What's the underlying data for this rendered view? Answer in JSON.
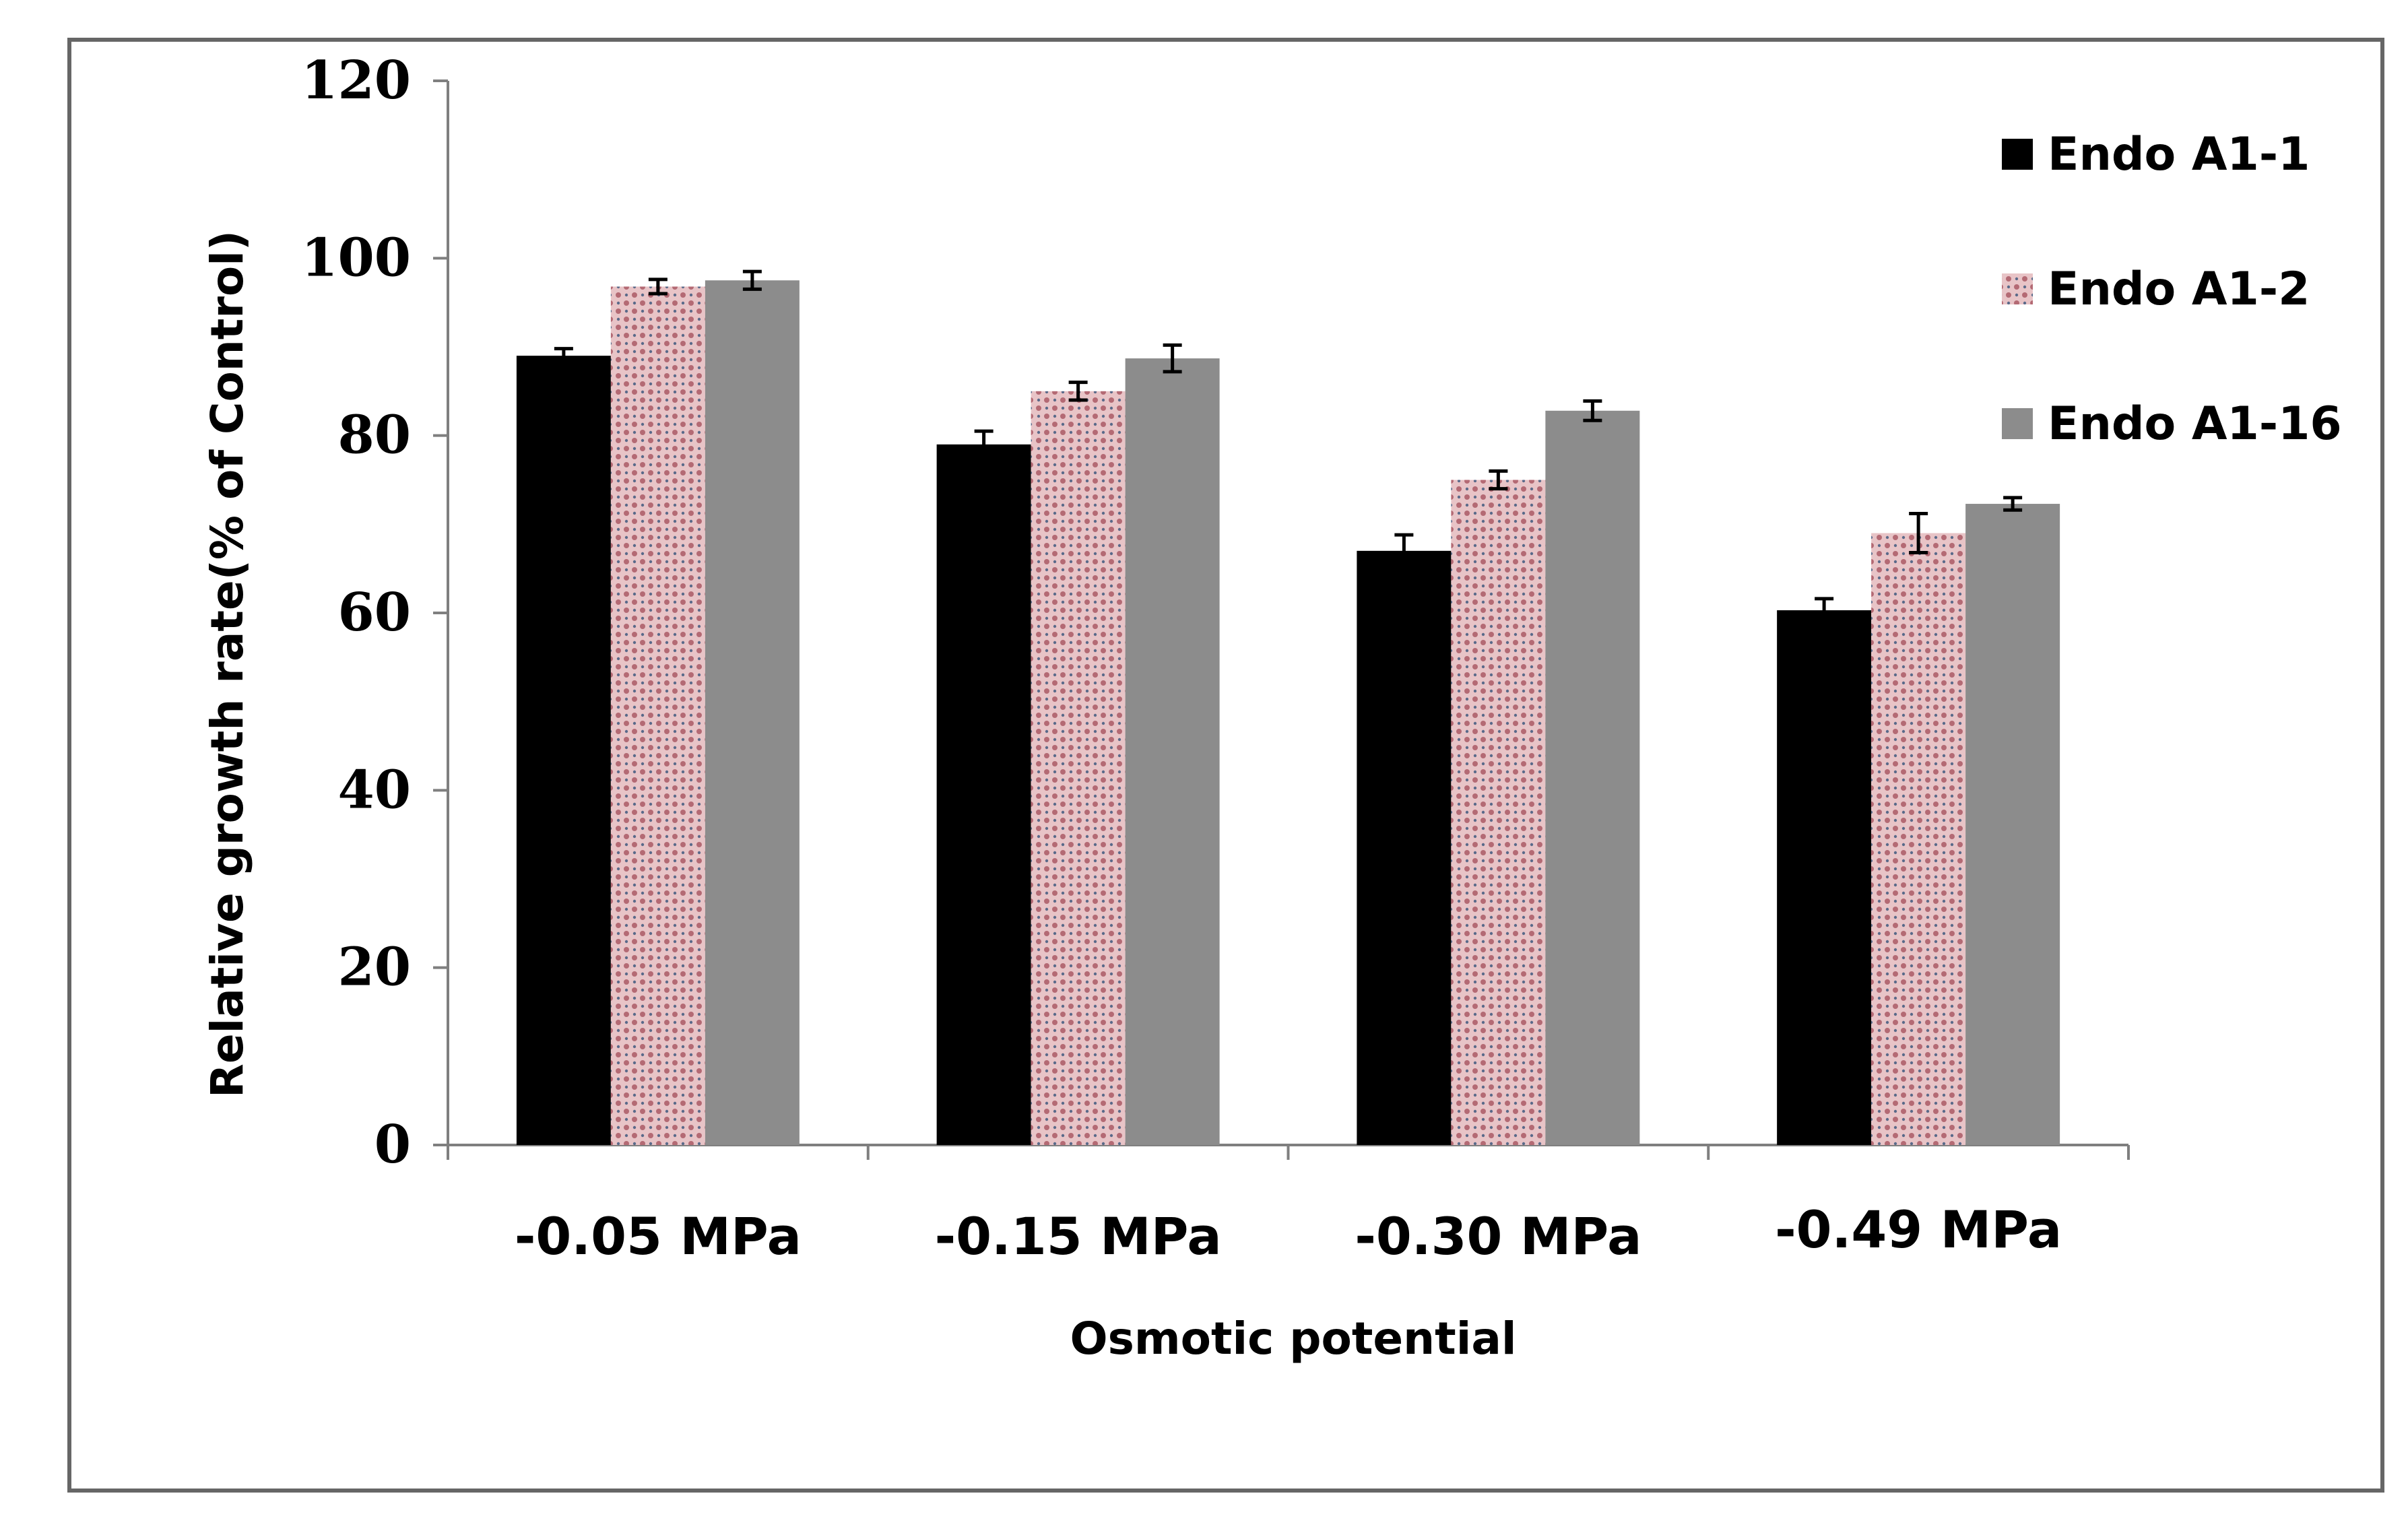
{
  "chart_data": {
    "type": "bar",
    "title": "",
    "xlabel": "Osmotic potential",
    "ylabel": "Relative  growth rate(% of Control)",
    "ylim": [
      0,
      120
    ],
    "yticks": [
      "0",
      "20",
      "40",
      "60",
      "80",
      "100",
      "120"
    ],
    "categories": [
      "-0.05 MPa",
      "-0.15 MPa",
      "-0.30 MPa",
      "-0.49 MPa"
    ],
    "series": [
      {
        "name": "Endo A1-1",
        "values": [
          89,
          79,
          67,
          60.3
        ],
        "errors": [
          0.8,
          1.5,
          1.8,
          1.3
        ],
        "color": "#000000",
        "pattern": "solid"
      },
      {
        "name": "Endo A1-2",
        "values": [
          96.8,
          85,
          75,
          69
        ],
        "errors": [
          0.8,
          1.0,
          1.0,
          2.2
        ],
        "color": "#d8a3a8",
        "pattern": "dotted-hatch"
      },
      {
        "name": "Endo A1-16",
        "values": [
          97.5,
          88.7,
          82.8,
          72.3
        ],
        "errors": [
          1.0,
          1.5,
          1.1,
          0.7
        ],
        "color": "#8c8c8c",
        "pattern": "solid"
      }
    ],
    "legend": "top-right",
    "grid": false
  }
}
